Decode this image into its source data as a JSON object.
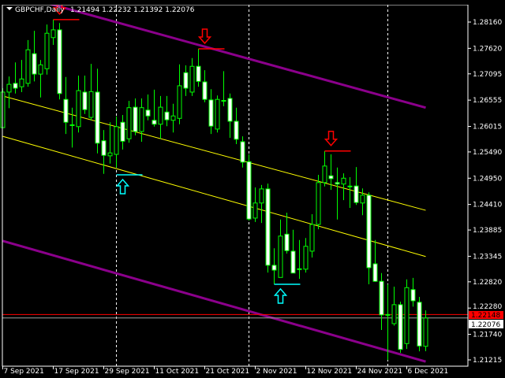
{
  "header": {
    "symbol_menu_icon": "triangle-down-icon",
    "title": "GBPCHF,Daily",
    "ohlc": "1.21494 1.22232 1.21392 1.22076"
  },
  "colors": {
    "background": "#000000",
    "candle_outline": "#00ff00",
    "bull_body": "#000000",
    "bear_body": "#ffffff",
    "channel_outer": "#8b008b",
    "channel_inner": "#ffff00",
    "sell_signal": "#ff0000",
    "buy_signal": "#00ffff",
    "ask_line": "#ff0000",
    "bid_line": "#a0a0a0",
    "separator": "#ffffff"
  },
  "chart_data": {
    "type": "candlestick",
    "title": "GBPCHF,Daily",
    "ylim": [
      1.2105,
      1.2888
    ],
    "grid": false,
    "y_ticks": [
      "1.28160",
      "1.27620",
      "1.27095",
      "1.26555",
      "1.26015",
      "1.25490",
      "1.24950",
      "1.24410",
      "1.23885",
      "1.23345",
      "1.22820",
      "1.22280",
      "1.21740",
      "1.21215"
    ],
    "x_ticks": [
      {
        "text": "7 Sep 2021",
        "date": "2021-09-07"
      },
      {
        "text": "17 Sep 2021",
        "date": "2021-09-17"
      },
      {
        "text": "29 Sep 2021",
        "date": "2021-09-29"
      },
      {
        "text": "11 Oct 2021",
        "date": "2021-10-11"
      },
      {
        "text": "21 Oct 2021",
        "date": "2021-10-21"
      },
      {
        "text": "2 Nov 2021",
        "date": "2021-11-02"
      },
      {
        "text": "12 Nov 2021",
        "date": "2021-11-12"
      },
      {
        "text": "24 Nov 2021",
        "date": "2021-11-24"
      },
      {
        "text": "6 Dec 2021",
        "date": "2021-12-06"
      }
    ],
    "columns": [
      "date",
      "open",
      "high",
      "low",
      "close"
    ],
    "candles": [
      [
        "2021-09-07",
        1.2599,
        1.268,
        1.2599,
        1.2672
      ],
      [
        "2021-09-08",
        1.2672,
        1.2704,
        1.2639,
        1.2688
      ],
      [
        "2021-09-09",
        1.269,
        1.2733,
        1.2669,
        1.268
      ],
      [
        "2021-09-10",
        1.2683,
        1.2738,
        1.2672,
        1.2699
      ],
      [
        "2021-09-13",
        1.269,
        1.2779,
        1.2683,
        1.2759
      ],
      [
        "2021-09-14",
        1.2751,
        1.2798,
        1.2694,
        1.2709
      ],
      [
        "2021-09-15",
        1.2709,
        1.2738,
        1.2661,
        1.2728
      ],
      [
        "2021-09-16",
        1.272,
        1.2811,
        1.2708,
        1.2793
      ],
      [
        "2021-09-17",
        1.2784,
        1.2821,
        1.2769,
        1.28
      ],
      [
        "2021-09-20",
        1.28,
        1.2814,
        1.2657,
        1.2669
      ],
      [
        "2021-09-21",
        1.2657,
        1.2703,
        1.2586,
        1.261
      ],
      [
        "2021-09-22",
        1.2604,
        1.264,
        1.2558,
        1.2604
      ],
      [
        "2021-09-23",
        1.2601,
        1.2706,
        1.2589,
        1.2675
      ],
      [
        "2021-09-24",
        1.2672,
        1.2706,
        1.2627,
        1.2636
      ],
      [
        "2021-09-27",
        1.262,
        1.273,
        1.2614,
        1.2673
      ],
      [
        "2021-09-28",
        1.2672,
        1.272,
        1.2546,
        1.2567
      ],
      [
        "2021-09-29",
        1.2572,
        1.2594,
        1.2504,
        1.2542
      ],
      [
        "2021-09-30",
        1.2541,
        1.261,
        1.2525,
        1.2547
      ],
      [
        "2021-10-01",
        1.2544,
        1.2622,
        1.2517,
        1.2601
      ],
      [
        "2021-10-04",
        1.261,
        1.2625,
        1.2554,
        1.2571
      ],
      [
        "2021-10-05",
        1.2576,
        1.2654,
        1.2568,
        1.264
      ],
      [
        "2021-10-06",
        1.2641,
        1.2659,
        1.2583,
        1.2591
      ],
      [
        "2021-10-07",
        1.2591,
        1.2659,
        1.257,
        1.264
      ],
      [
        "2021-10-08",
        1.2635,
        1.2667,
        1.2614,
        1.2623
      ],
      [
        "2021-10-11",
        1.2614,
        1.2677,
        1.2601,
        1.2606
      ],
      [
        "2021-10-12",
        1.2606,
        1.2664,
        1.2576,
        1.2641
      ],
      [
        "2021-10-13",
        1.2631,
        1.2664,
        1.2602,
        1.2615
      ],
      [
        "2021-10-14",
        1.2614,
        1.2648,
        1.2589,
        1.2623
      ],
      [
        "2021-10-15",
        1.2618,
        1.2729,
        1.2606,
        1.2685
      ],
      [
        "2021-10-18",
        1.2712,
        1.2727,
        1.2664,
        1.268
      ],
      [
        "2021-10-19",
        1.2672,
        1.2742,
        1.2664,
        1.2725
      ],
      [
        "2021-10-20",
        1.2725,
        1.2761,
        1.2683,
        1.2694
      ],
      [
        "2021-10-21",
        1.2693,
        1.2717,
        1.2651,
        1.2657
      ],
      [
        "2021-10-22",
        1.2656,
        1.2678,
        1.2586,
        1.2602
      ],
      [
        "2021-10-25",
        1.2596,
        1.2665,
        1.2589,
        1.2657
      ],
      [
        "2021-10-26",
        1.2654,
        1.2715,
        1.2643,
        1.2654
      ],
      [
        "2021-10-27",
        1.2659,
        1.2669,
        1.2578,
        1.2612
      ],
      [
        "2021-10-28",
        1.2612,
        1.264,
        1.2565,
        1.2575
      ],
      [
        "2021-10-29",
        1.257,
        1.2581,
        1.2517,
        1.2528
      ],
      [
        "2021-11-01",
        1.2529,
        1.2544,
        1.2408,
        1.2411
      ],
      [
        "2021-11-02",
        1.2413,
        1.2476,
        1.2405,
        1.2444
      ],
      [
        "2021-11-03",
        1.2444,
        1.2481,
        1.2403,
        1.2473
      ],
      [
        "2021-11-04",
        1.2473,
        1.2484,
        1.2301,
        1.2316
      ],
      [
        "2021-11-05",
        1.2316,
        1.2351,
        1.2277,
        1.2306
      ],
      [
        "2021-11-08",
        1.2291,
        1.241,
        1.2291,
        1.2376
      ],
      [
        "2021-11-09",
        1.238,
        1.2424,
        1.234,
        1.2346
      ],
      [
        "2021-11-10",
        1.2345,
        1.2389,
        1.23,
        1.23
      ],
      [
        "2021-11-11",
        1.2308,
        1.2368,
        1.2288,
        1.2308
      ],
      [
        "2021-11-12",
        1.2308,
        1.2372,
        1.2301,
        1.2355
      ],
      [
        "2021-11-15",
        1.2345,
        1.2421,
        1.2332,
        1.24
      ],
      [
        "2021-11-16",
        1.24,
        1.2502,
        1.239,
        1.2486
      ],
      [
        "2021-11-17",
        1.2486,
        1.2551,
        1.2478,
        1.252
      ],
      [
        "2021-11-18",
        1.25,
        1.2544,
        1.2471,
        1.2494
      ],
      [
        "2021-11-19",
        1.2486,
        1.2517,
        1.241,
        1.2483
      ],
      [
        "2021-11-22",
        1.2483,
        1.2505,
        1.245,
        1.2495
      ],
      [
        "2021-11-23",
        1.2478,
        1.2497,
        1.2434,
        1.2478
      ],
      [
        "2021-11-24",
        1.2479,
        1.2518,
        1.244,
        1.2445
      ],
      [
        "2021-11-25",
        1.2444,
        1.2474,
        1.2419,
        1.246
      ],
      [
        "2021-11-26",
        1.246,
        1.2466,
        1.2277,
        1.2311
      ],
      [
        "2021-11-29",
        1.2319,
        1.2368,
        1.2282,
        1.2283
      ],
      [
        "2021-11-30",
        1.2283,
        1.23,
        1.2183,
        1.2214
      ],
      [
        "2021-12-01",
        1.2214,
        1.2277,
        1.2121,
        1.2214
      ],
      [
        "2021-12-02",
        1.2196,
        1.2272,
        1.2192,
        1.2235
      ],
      [
        "2021-12-03",
        1.2235,
        1.2241,
        1.2136,
        1.2143
      ],
      [
        "2021-12-06",
        1.2155,
        1.2287,
        1.2144,
        1.227
      ],
      [
        "2021-12-07",
        1.2266,
        1.229,
        1.2231,
        1.2243
      ],
      [
        "2021-12-08",
        1.224,
        1.2251,
        1.2139,
        1.215
      ],
      [
        "2021-12-09",
        1.21494,
        1.22232,
        1.21392,
        1.22076
      ]
    ],
    "trend_lines": [
      {
        "name": "channel-upper-outer",
        "color": "channel_outer",
        "from": [
          "2021-09-16",
          1.2855
        ],
        "to": [
          "2021-12-09",
          1.264
        ]
      },
      {
        "name": "channel-lower-outer",
        "color": "channel_outer",
        "from": [
          "2021-09-07",
          1.2366
        ],
        "to": [
          "2021-12-09",
          1.2118
        ]
      },
      {
        "name": "channel-upper-inner",
        "color": "channel_inner",
        "from": [
          "2021-09-07",
          1.2664
        ],
        "to": [
          "2021-12-09",
          1.2429
        ]
      },
      {
        "name": "channel-lower-inner",
        "color": "channel_inner",
        "from": [
          "2021-09-07",
          1.2581
        ],
        "to": [
          "2021-12-09",
          1.2334
        ]
      }
    ],
    "signals": [
      {
        "type": "sell",
        "line_date": "2021-09-17",
        "arrow_date": "2021-09-20",
        "price": 1.2821
      },
      {
        "type": "buy",
        "line_date": "2021-10-01",
        "arrow_date": "2021-10-04",
        "price": 1.2502
      },
      {
        "type": "sell",
        "line_date": "2021-10-20",
        "arrow_date": "2021-10-21",
        "price": 1.2761
      },
      {
        "type": "buy",
        "line_date": "2021-11-05",
        "arrow_date": "2021-11-08",
        "price": 1.2277
      },
      {
        "type": "sell",
        "line_date": "2021-11-17",
        "arrow_date": "2021-11-18",
        "price": 1.2551
      }
    ],
    "period_separators": [
      "2021-10-01",
      "2021-11-01",
      "2021-12-01"
    ],
    "ask_price": "1.22148",
    "bid_price": "1.22076"
  }
}
